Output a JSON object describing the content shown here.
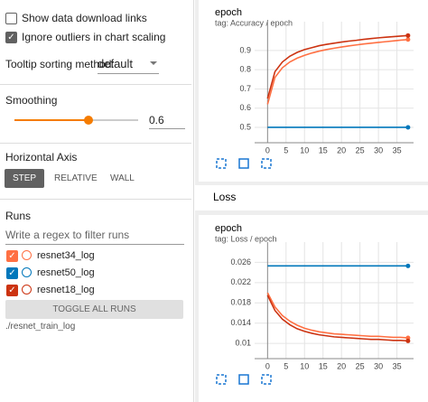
{
  "sidebar": {
    "show_download": "Show data download links",
    "ignore_outliers": "Ignore outliers in chart scaling",
    "tooltip_label": "Tooltip sorting method:",
    "tooltip_value": "default",
    "smoothing_label": "Smoothing",
    "smoothing": 0.6,
    "axis_title": "Horizontal Axis",
    "axis_buttons": [
      "STEP",
      "RELATIVE",
      "WALL"
    ],
    "runs_title": "Runs",
    "filter_placeholder": "Write a regex to filter runs",
    "toggle": "TOGGLE ALL RUNS",
    "log_dir": "./resnet_train_log"
  },
  "section_title": "Loss",
  "chart_data": [
    {
      "type": "line",
      "title": "epoch",
      "subtitle": "tag: Accuracy / epoch",
      "x": [
        0,
        2,
        4,
        6,
        8,
        10,
        12,
        14,
        16,
        18,
        20,
        22,
        24,
        26,
        28,
        30,
        32,
        34,
        36,
        38
      ],
      "xlim": [
        -3.5,
        39.5
      ],
      "xticks": [
        0,
        5,
        10,
        15,
        20,
        25,
        30,
        35
      ],
      "ylim": [
        0.42,
        1.05
      ],
      "yticks": [
        0.5,
        0.6,
        0.7,
        0.8,
        0.9
      ],
      "grid": true,
      "series": [
        {
          "name": "resnet34_log",
          "color": "#ff7043",
          "values": [
            0.62,
            0.76,
            0.81,
            0.84,
            0.86,
            0.875,
            0.887,
            0.897,
            0.905,
            0.912,
            0.918,
            0.924,
            0.929,
            0.934,
            0.938,
            0.942,
            0.946,
            0.95,
            0.954,
            0.957
          ]
        },
        {
          "name": "resnet50_log",
          "color": "#0077bb",
          "values": [
            0.5,
            0.5,
            0.5,
            0.5,
            0.5,
            0.5,
            0.5,
            0.5,
            0.5,
            0.5,
            0.5,
            0.5,
            0.5,
            0.5,
            0.5,
            0.5,
            0.5,
            0.5,
            0.5,
            0.5
          ]
        },
        {
          "name": "resnet18_log",
          "color": "#cc3311",
          "values": [
            0.65,
            0.79,
            0.84,
            0.87,
            0.89,
            0.905,
            0.915,
            0.925,
            0.932,
            0.938,
            0.944,
            0.949,
            0.953,
            0.958,
            0.962,
            0.966,
            0.969,
            0.972,
            0.975,
            0.978
          ]
        }
      ]
    },
    {
      "type": "line",
      "title": "epoch",
      "subtitle": "tag: Loss / epoch",
      "x": [
        0,
        2,
        4,
        6,
        8,
        10,
        12,
        14,
        16,
        18,
        20,
        22,
        24,
        26,
        28,
        30,
        32,
        34,
        36,
        38
      ],
      "xlim": [
        -3.5,
        39.5
      ],
      "xticks": [
        0,
        5,
        10,
        15,
        20,
        25,
        30,
        35
      ],
      "ylim": [
        0.007,
        0.03
      ],
      "yticks": [
        0.01,
        0.014,
        0.018,
        0.022,
        0.026
      ],
      "grid": true,
      "series": [
        {
          "name": "resnet34_log",
          "color": "#ff7043",
          "values": [
            0.02,
            0.0172,
            0.0155,
            0.0144,
            0.0136,
            0.013,
            0.0126,
            0.0123,
            0.0121,
            0.0119,
            0.0118,
            0.0117,
            0.0116,
            0.0115,
            0.0114,
            0.0114,
            0.0113,
            0.0112,
            0.0112,
            0.0111
          ]
        },
        {
          "name": "resnet50_log",
          "color": "#0077bb",
          "values": [
            0.0253,
            0.0253,
            0.0253,
            0.0253,
            0.0253,
            0.0253,
            0.0253,
            0.0253,
            0.0253,
            0.0253,
            0.0253,
            0.0253,
            0.0253,
            0.0253,
            0.0253,
            0.0253,
            0.0253,
            0.0253,
            0.0253,
            0.0253
          ]
        },
        {
          "name": "resnet18_log",
          "color": "#cc3311",
          "values": [
            0.0195,
            0.0165,
            0.0148,
            0.0137,
            0.0129,
            0.0124,
            0.012,
            0.0117,
            0.0115,
            0.0113,
            0.0112,
            0.0111,
            0.011,
            0.0109,
            0.0108,
            0.0108,
            0.0107,
            0.0106,
            0.0106,
            0.0105
          ]
        }
      ]
    }
  ]
}
